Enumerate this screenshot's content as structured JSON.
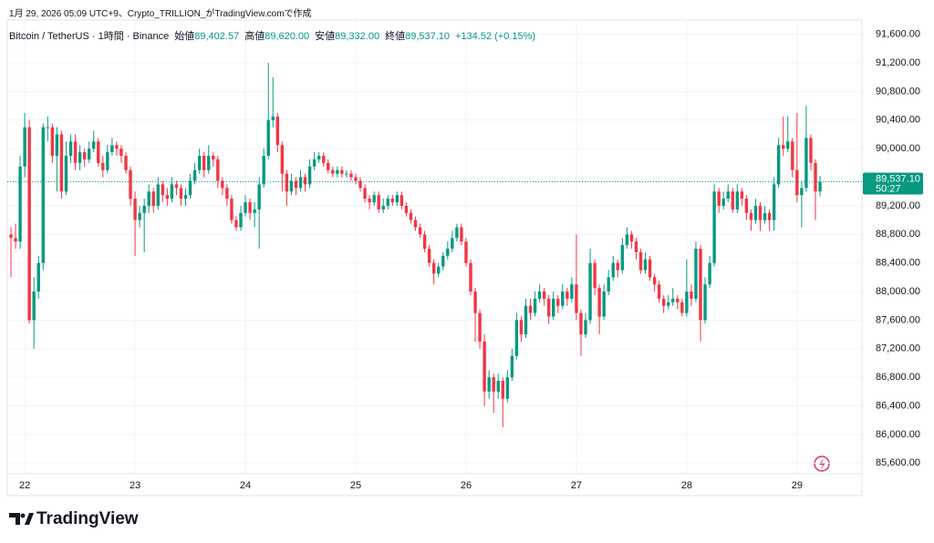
{
  "chart_data": {
    "type": "candlestick",
    "caption": "1月 29, 2026 05:09 UTC+9、Crypto_TRILLION_がTradingView.comで作成",
    "title": "Bitcoin / TetherUS · 1時間 · Binance",
    "ohlc_legend": [
      {
        "label": "始値",
        "value": "89,402.57"
      },
      {
        "label": "高値",
        "value": "89,620.00"
      },
      {
        "label": "安値",
        "value": "89,332.00"
      },
      {
        "label": "終値",
        "value": "89,537.10"
      }
    ],
    "change": "+134.52 (+0.15%)",
    "last_price_label": "89,537.10",
    "countdown": "50:27",
    "brand": "TradingView",
    "up_color": "#089981",
    "down_color": "#f23645",
    "grid": true,
    "ylim": [
      85450,
      91800
    ],
    "yticks": [
      {
        "value": 85600,
        "label": "85,600.00"
      },
      {
        "value": 86000,
        "label": "86,000.00"
      },
      {
        "value": 86400,
        "label": "86,400.00"
      },
      {
        "value": 86800,
        "label": "86,800.00"
      },
      {
        "value": 87200,
        "label": "87,200.00"
      },
      {
        "value": 87600,
        "label": "87,600.00"
      },
      {
        "value": 88000,
        "label": "88,000.00"
      },
      {
        "value": 88400,
        "label": "88,400.00"
      },
      {
        "value": 88800,
        "label": "88,800.00"
      },
      {
        "value": 89200,
        "label": "89,200.00"
      },
      {
        "value": 89600,
        "label": "89,600.00"
      },
      {
        "value": 90000,
        "label": "90,000.00"
      },
      {
        "value": 90400,
        "label": "90,400.00"
      },
      {
        "value": 90800,
        "label": "90,800.00"
      },
      {
        "value": 91200,
        "label": "91,200.00"
      },
      {
        "value": 91600,
        "label": "91,600.00"
      }
    ],
    "categories": [
      null,
      null,
      null,
      "22",
      null,
      null,
      null,
      null,
      null,
      null,
      null,
      null,
      null,
      null,
      null,
      null,
      null,
      null,
      null,
      null,
      null,
      null,
      null,
      null,
      null,
      null,
      null,
      "23",
      null,
      null,
      null,
      null,
      null,
      null,
      null,
      null,
      null,
      null,
      null,
      null,
      null,
      null,
      null,
      null,
      null,
      null,
      null,
      null,
      null,
      null,
      null,
      "24",
      null,
      null,
      null,
      null,
      null,
      null,
      null,
      null,
      null,
      null,
      null,
      null,
      null,
      null,
      null,
      null,
      null,
      null,
      null,
      null,
      null,
      null,
      null,
      "25",
      null,
      null,
      null,
      null,
      null,
      null,
      null,
      null,
      null,
      null,
      null,
      null,
      null,
      null,
      null,
      null,
      null,
      null,
      null,
      null,
      null,
      null,
      null,
      "26",
      null,
      null,
      null,
      null,
      null,
      null,
      null,
      null,
      null,
      null,
      null,
      null,
      null,
      null,
      null,
      null,
      null,
      null,
      null,
      null,
      null,
      null,
      null,
      "27",
      null,
      null,
      null,
      null,
      null,
      null,
      null,
      null,
      null,
      null,
      null,
      null,
      null,
      null,
      null,
      null,
      null,
      null,
      null,
      null,
      null,
      null,
      null,
      "28",
      null,
      null,
      null,
      null,
      null,
      null,
      null,
      null,
      null,
      null,
      null,
      null,
      null,
      null,
      null,
      null,
      null,
      null,
      null,
      null,
      null,
      null,
      null,
      "29",
      null,
      null,
      null,
      null,
      null
    ],
    "open": [
      88800,
      88750,
      88700,
      89750,
      90300,
      87600,
      88000,
      88400,
      90300,
      90300,
      89900,
      90200,
      89400,
      89900,
      90100,
      89800,
      89950,
      89850,
      90000,
      90100,
      89800,
      89700,
      89950,
      90050,
      90000,
      89900,
      89700,
      89300,
      89000,
      89100,
      89200,
      89400,
      89200,
      89500,
      89350,
      89300,
      89500,
      89450,
      89300,
      89350,
      89550,
      89700,
      89900,
      89700,
      89900,
      89850,
      89550,
      89450,
      89300,
      89000,
      88900,
      89100,
      89250,
      89100,
      89150,
      89500,
      89900,
      90400,
      90450,
      90050,
      89650,
      89400,
      89550,
      89450,
      89600,
      89500,
      89750,
      89850,
      89900,
      89800,
      89700,
      89650,
      89700,
      89650,
      89650,
      89600,
      89550,
      89450,
      89300,
      89250,
      89350,
      89150,
      89200,
      89300,
      89250,
      89350,
      89200,
      89100,
      89000,
      88900,
      88800,
      88600,
      88400,
      88250,
      88350,
      88500,
      88600,
      88750,
      88900,
      88700,
      88400,
      88000,
      87700,
      87300,
      86600,
      86800,
      86600,
      86750,
      86500,
      86800,
      87100,
      87600,
      87400,
      87800,
      87700,
      87900,
      88000,
      87900,
      87650,
      87900,
      87800,
      88000,
      87900,
      88100,
      87700,
      87400,
      87600,
      88400,
      88050,
      87650,
      88000,
      88200,
      88400,
      88300,
      88650,
      88800,
      88700,
      88550,
      88300,
      88450,
      88200,
      88100,
      87900,
      87800,
      87850,
      87900,
      87850,
      87700,
      88000,
      87900,
      88600,
      87600,
      88100,
      88400,
      89400,
      89200,
      89300,
      89400,
      89150,
      89400,
      89300,
      89100,
      89000,
      89200,
      89000,
      89100,
      89000,
      89500,
      90050,
      90000,
      90100,
      89700,
      89350,
      89450,
      90150,
      89800,
      89402.57
    ],
    "high": [
      88900,
      88950,
      89900,
      90500,
      90400,
      88200,
      88500,
      90350,
      90450,
      90350,
      90300,
      90250,
      90100,
      90200,
      90200,
      90050,
      90000,
      90100,
      90250,
      90150,
      89900,
      90050,
      90150,
      90100,
      90050,
      89950,
      89750,
      89400,
      89200,
      89300,
      89500,
      89450,
      89600,
      89550,
      89450,
      89600,
      89550,
      89500,
      89450,
      89650,
      89800,
      90000,
      89950,
      90050,
      89950,
      89900,
      89600,
      89500,
      89350,
      89050,
      89200,
      89350,
      89300,
      89250,
      89600,
      90000,
      91200,
      91000,
      90500,
      90100,
      89700,
      89650,
      89600,
      89700,
      89650,
      89850,
      89950,
      89950,
      89950,
      89850,
      89750,
      89750,
      89750,
      89700,
      89700,
      89650,
      89600,
      89500,
      89350,
      89400,
      89400,
      89300,
      89350,
      89350,
      89400,
      89400,
      89250,
      89150,
      89050,
      88950,
      88850,
      88650,
      88450,
      88400,
      88550,
      88700,
      88850,
      88950,
      88950,
      88750,
      88450,
      88050,
      87750,
      87400,
      86900,
      86850,
      86850,
      86800,
      86900,
      87200,
      87700,
      87650,
      87900,
      87900,
      88000,
      88100,
      88050,
      87950,
      88000,
      87950,
      88100,
      88050,
      88200,
      88800,
      87750,
      87700,
      88600,
      88450,
      88100,
      88100,
      88300,
      88500,
      88450,
      88750,
      88900,
      88850,
      88750,
      88600,
      88550,
      88500,
      88250,
      88150,
      87950,
      87950,
      88050,
      87950,
      87900,
      88450,
      88100,
      88700,
      88650,
      88200,
      88500,
      89500,
      89450,
      89400,
      89500,
      89450,
      89500,
      89450,
      89350,
      89150,
      89300,
      89250,
      89200,
      89150,
      89600,
      90150,
      90450,
      90450,
      90150,
      90500,
      89550,
      90600,
      90200,
      89850,
      89620
    ],
    "low": [
      88200,
      88600,
      88600,
      89600,
      87550,
      87200,
      87900,
      88300,
      90100,
      89800,
      89400,
      89300,
      89350,
      89800,
      89700,
      89700,
      89750,
      89800,
      89950,
      89750,
      89600,
      89650,
      89900,
      89900,
      89800,
      89650,
      89200,
      88500,
      88900,
      88550,
      89100,
      89100,
      89150,
      89250,
      89200,
      89250,
      89350,
      89200,
      89200,
      89300,
      89500,
      89650,
      89600,
      89650,
      89750,
      89450,
      89350,
      89200,
      88950,
      88850,
      88850,
      89050,
      89000,
      88900,
      88600,
      89450,
      89850,
      90300,
      89950,
      89400,
      89200,
      89350,
      89350,
      89400,
      89400,
      89450,
      89700,
      89800,
      89750,
      89650,
      89600,
      89600,
      89600,
      89600,
      89550,
      89500,
      89400,
      89250,
      89150,
      89200,
      89100,
      89100,
      89150,
      89200,
      89200,
      89150,
      89050,
      88950,
      88850,
      88750,
      88550,
      88350,
      88100,
      88200,
      88300,
      88450,
      88550,
      88700,
      88650,
      88350,
      87950,
      87300,
      87200,
      86400,
      86500,
      86300,
      86500,
      86100,
      86450,
      86750,
      87050,
      87300,
      87350,
      87600,
      87650,
      87850,
      87800,
      87550,
      87600,
      87700,
      87750,
      87800,
      87850,
      87600,
      87100,
      87350,
      87550,
      87950,
      87400,
      87600,
      87950,
      88150,
      88200,
      88250,
      88600,
      88600,
      88450,
      88250,
      88250,
      88150,
      88000,
      87850,
      87700,
      87750,
      87800,
      87750,
      87650,
      87650,
      87800,
      87850,
      87300,
      87550,
      88050,
      88350,
      89100,
      89150,
      89250,
      89100,
      89100,
      89200,
      89000,
      88850,
      88950,
      88850,
      88950,
      88850,
      88850,
      89450,
      89900,
      89950,
      89600,
      89250,
      88900,
      89400,
      89700,
      89000,
      89332
    ],
    "close": [
      88750,
      88700,
      89750,
      90300,
      87600,
      88000,
      88400,
      90300,
      90300,
      89900,
      90200,
      89400,
      89900,
      90100,
      89800,
      89950,
      89850,
      90000,
      90100,
      89800,
      89700,
      89950,
      90050,
      90000,
      89900,
      89700,
      89300,
      89000,
      89100,
      89200,
      89400,
      89200,
      89500,
      89350,
      89300,
      89500,
      89450,
      89300,
      89350,
      89550,
      89700,
      89900,
      89700,
      89900,
      89850,
      89550,
      89450,
      89300,
      89000,
      88900,
      89100,
      89250,
      89100,
      89150,
      89500,
      89900,
      90400,
      90450,
      90050,
      89650,
      89400,
      89550,
      89450,
      89600,
      89500,
      89750,
      89850,
      89900,
      89800,
      89700,
      89650,
      89700,
      89650,
      89650,
      89600,
      89550,
      89450,
      89300,
      89250,
      89350,
      89150,
      89200,
      89300,
      89250,
      89350,
      89200,
      89100,
      89000,
      88900,
      88800,
      88600,
      88400,
      88250,
      88350,
      88500,
      88600,
      88750,
      88900,
      88700,
      88400,
      88000,
      87700,
      87300,
      86600,
      86800,
      86600,
      86750,
      86500,
      86800,
      87100,
      87600,
      87400,
      87800,
      87700,
      87900,
      88000,
      87900,
      87650,
      87900,
      87800,
      88000,
      87900,
      88100,
      87700,
      87400,
      87600,
      88400,
      88050,
      87650,
      88000,
      88200,
      88400,
      88300,
      88650,
      88800,
      88700,
      88550,
      88300,
      88450,
      88200,
      88100,
      87900,
      87800,
      87850,
      87900,
      87850,
      87700,
      88000,
      87900,
      88600,
      87600,
      88100,
      88400,
      89400,
      89200,
      89300,
      89400,
      89150,
      89400,
      89300,
      89100,
      89000,
      89200,
      89000,
      89100,
      89000,
      89500,
      90050,
      90000,
      90100,
      89700,
      89350,
      89450,
      90150,
      89800,
      89402.57,
      89537.1
    ]
  }
}
